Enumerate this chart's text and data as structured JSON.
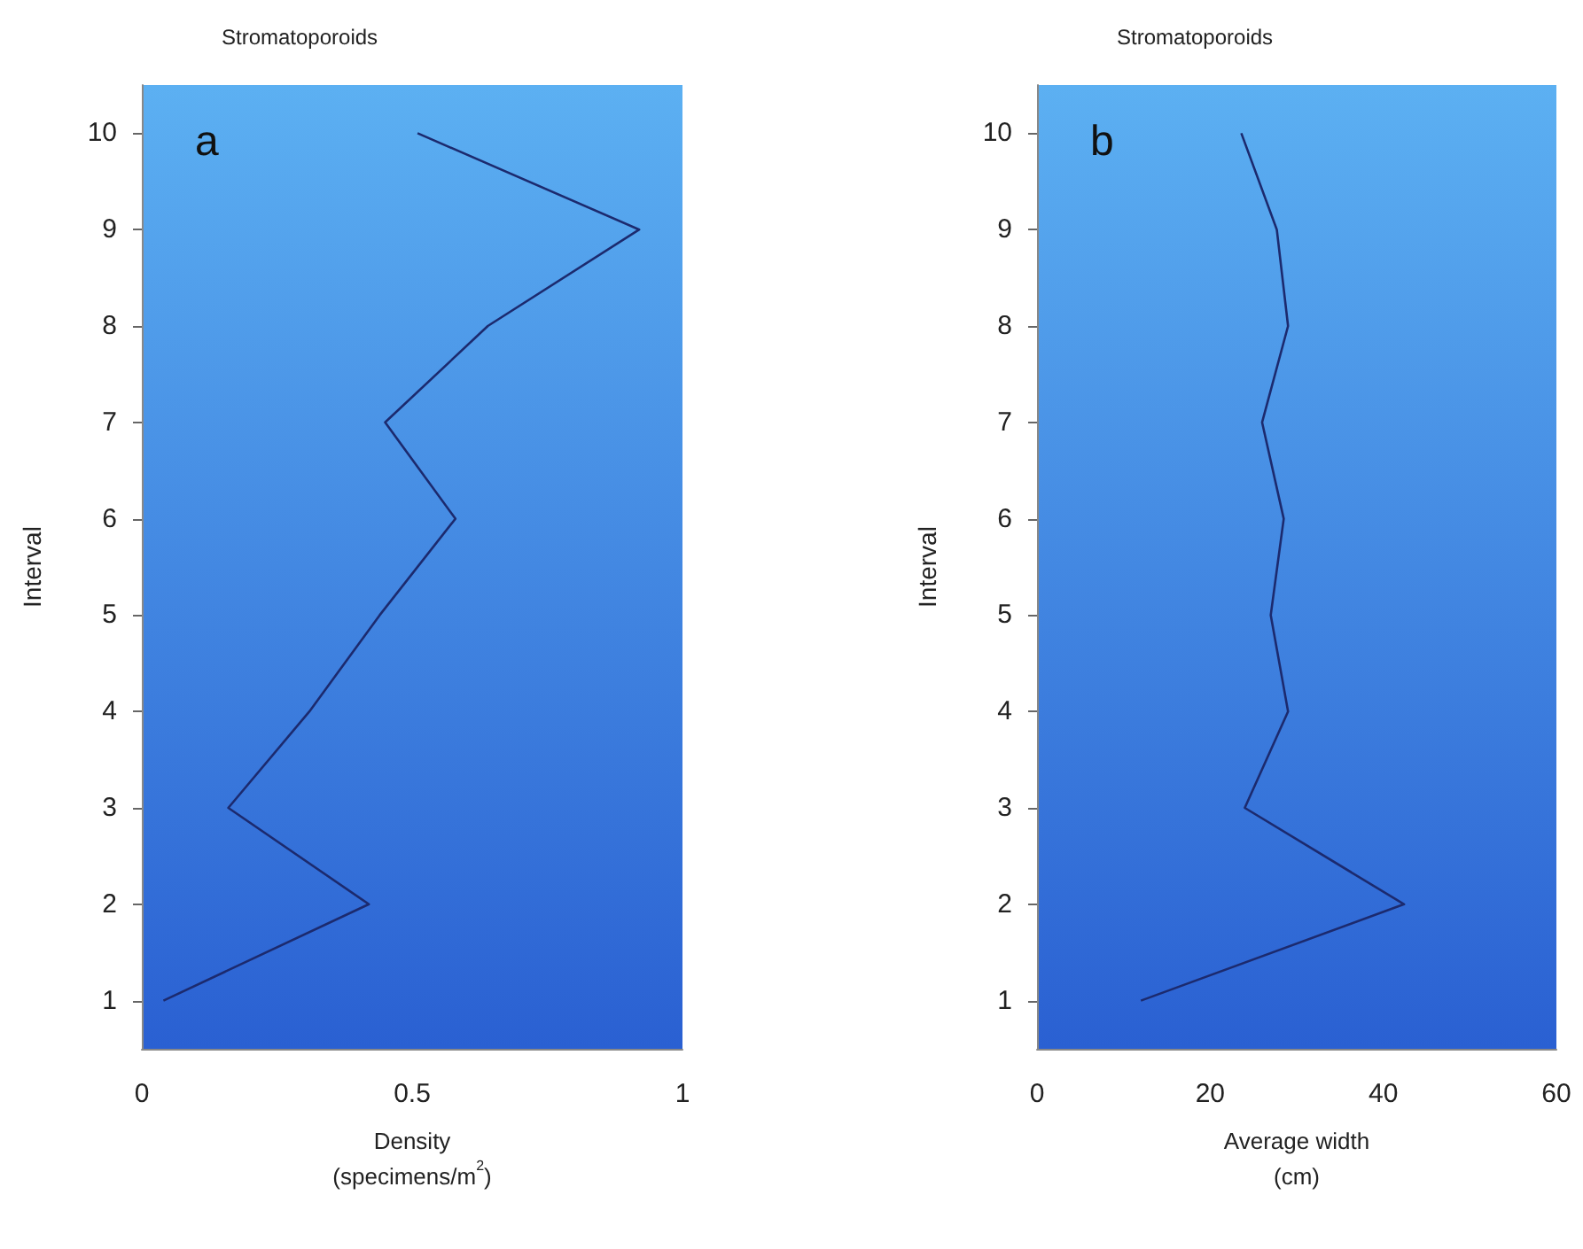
{
  "chart_data": [
    {
      "type": "line",
      "title": "Stromatoporoids",
      "xlabel": "Density\n(specimens/m$^{2}$)",
      "ylabel": "Interval",
      "annotations": [
        "a"
      ],
      "series": [
        {
          "color": "#1c2a6e",
          "x": [
            0.04,
            0.42,
            0.16,
            0.31,
            0.44,
            0.58,
            0.45,
            0.64,
            0.92,
            0.51
          ],
          "values": [
            1,
            2,
            3,
            4,
            5,
            6,
            7,
            8,
            9,
            10
          ]
        }
      ],
      "xlim": [
        0,
        1
      ],
      "xticks": [
        0,
        0.5,
        1
      ],
      "ylim": [
        0.5,
        10.5
      ],
      "yticks": [
        1,
        2,
        3,
        4,
        5,
        6,
        7,
        8,
        9,
        10
      ],
      "marker": "none"
    },
    {
      "type": "line",
      "title": "Stromatoporoids",
      "xlabel": "Average width\n(cm)",
      "ylabel": "Interval",
      "annotations": [
        "b"
      ],
      "series": [
        {
          "color": "#1c2a6e",
          "x": [
            12,
            42.4,
            24,
            29,
            27,
            28.5,
            26,
            29,
            27.7,
            23.6
          ],
          "values": [
            1,
            2,
            3,
            4,
            5,
            6,
            7,
            8,
            9,
            10
          ]
        }
      ],
      "xlim": [
        0,
        60
      ],
      "xticks": [
        0,
        20,
        40,
        60
      ],
      "ylim": [
        0.5,
        10.5
      ],
      "yticks": [
        1,
        2,
        3,
        4,
        5,
        6,
        7,
        8,
        9,
        10
      ],
      "marker": "none"
    }
  ]
}
